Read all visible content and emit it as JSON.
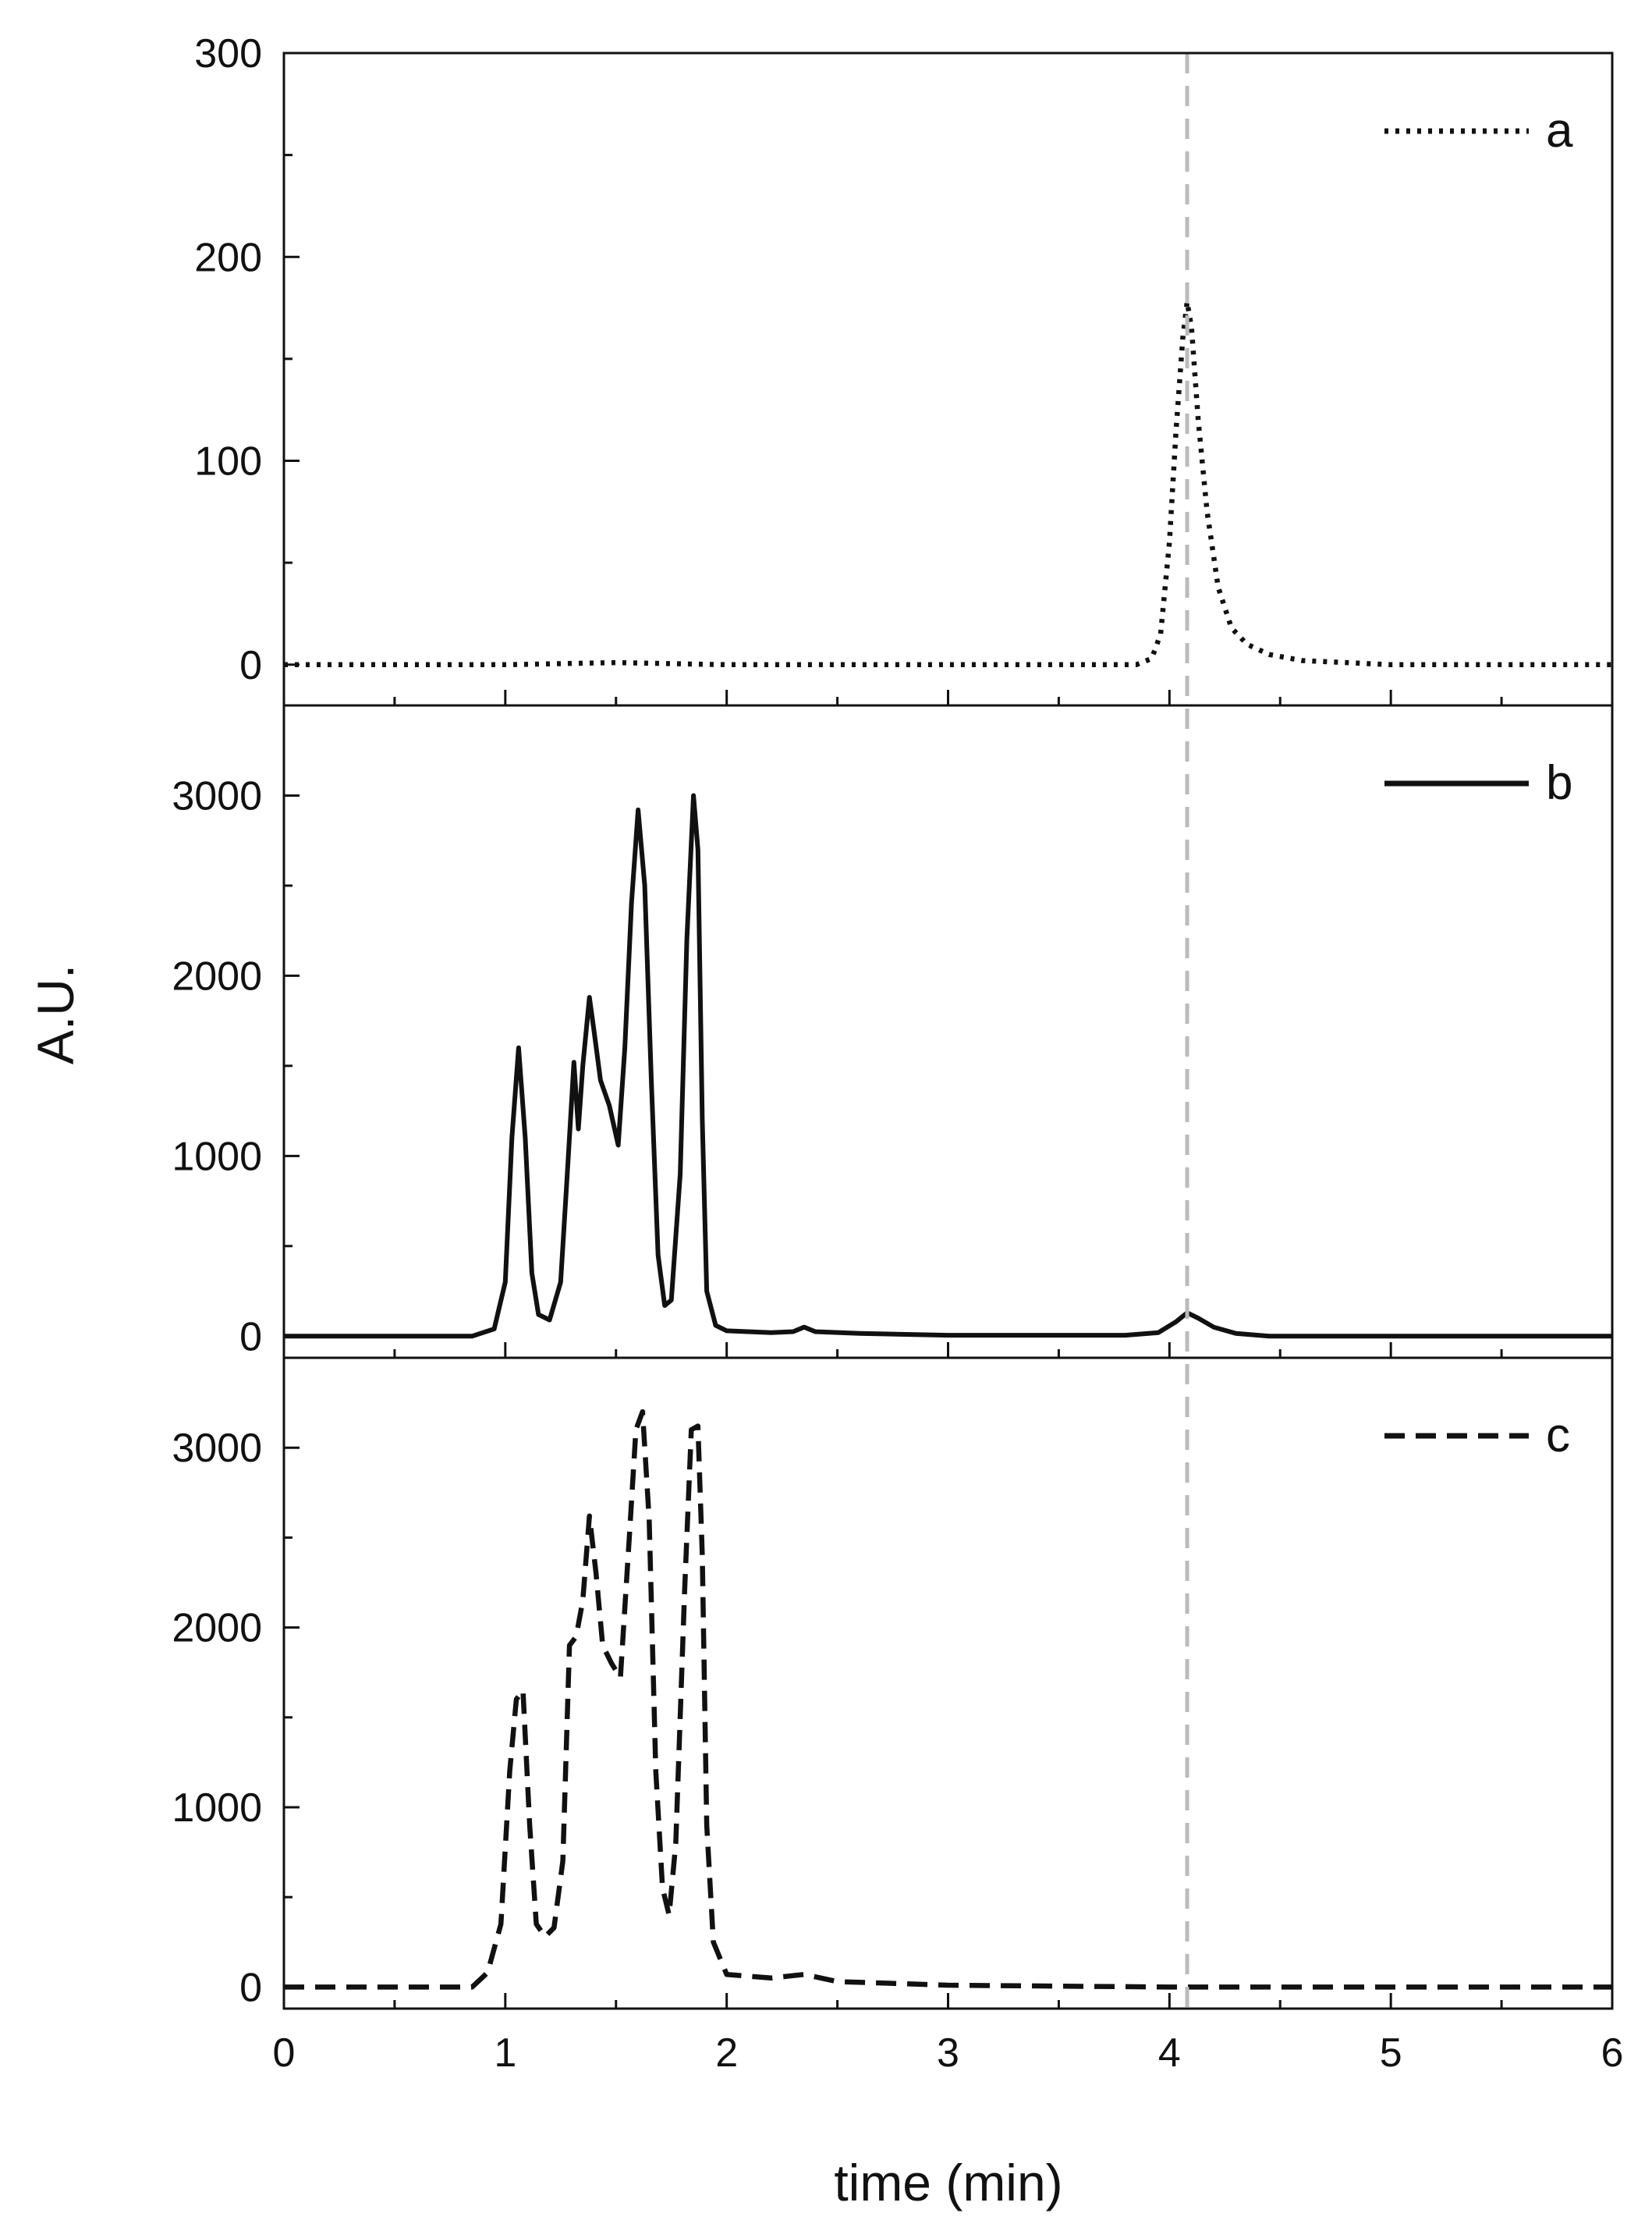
{
  "figure": {
    "xlabel": "time (min)",
    "ylabel": "A.U."
  },
  "colors": {
    "axis": "#111111",
    "trace": "#111111",
    "reference_line": "#bbbbbb"
  },
  "chart_data": [
    {
      "type": "line",
      "panel": "top",
      "xlim": [
        0,
        6
      ],
      "ylim": [
        -20,
        300
      ],
      "xticks": [
        0,
        1,
        2,
        3,
        4,
        5,
        6
      ],
      "yticks": [
        0,
        100,
        200,
        300
      ],
      "ytick_labels": [
        "0",
        "100",
        "200",
        "300"
      ],
      "legend_position": "top-right",
      "reference_line_x": 4.08,
      "series": [
        {
          "name": "a",
          "style": "dotted",
          "x": [
            0,
            1.0,
            1.5,
            2.0,
            3.0,
            3.5,
            3.85,
            3.92,
            3.96,
            4.0,
            4.03,
            4.06,
            4.08,
            4.1,
            4.13,
            4.17,
            4.22,
            4.28,
            4.35,
            4.45,
            4.6,
            4.8,
            5.0,
            5.5,
            6.0
          ],
          "y": [
            0,
            0,
            1,
            0,
            0,
            0,
            0,
            3,
            15,
            60,
            115,
            160,
            178,
            165,
            120,
            75,
            38,
            18,
            10,
            5,
            2,
            1,
            0,
            0,
            0
          ]
        }
      ]
    },
    {
      "type": "line",
      "panel": "middle",
      "xlim": [
        0,
        6
      ],
      "ylim": [
        -120,
        3500
      ],
      "xticks": [
        0,
        1,
        2,
        3,
        4,
        5,
        6
      ],
      "yticks": [
        0,
        1000,
        2000,
        3000
      ],
      "ytick_labels": [
        "0",
        "1000",
        "2000",
        "3000"
      ],
      "legend_position": "top-right",
      "reference_line_x": 4.08,
      "series": [
        {
          "name": "b",
          "style": "solid",
          "x": [
            0,
            0.85,
            0.95,
            1.0,
            1.03,
            1.06,
            1.09,
            1.12,
            1.15,
            1.2,
            1.25,
            1.28,
            1.31,
            1.33,
            1.35,
            1.38,
            1.4,
            1.43,
            1.47,
            1.51,
            1.54,
            1.57,
            1.6,
            1.63,
            1.66,
            1.69,
            1.72,
            1.75,
            1.79,
            1.82,
            1.85,
            1.87,
            1.89,
            1.91,
            1.95,
            2.0,
            2.2,
            2.3,
            2.35,
            2.4,
            2.6,
            3.0,
            3.8,
            3.95,
            4.03,
            4.08,
            4.13,
            4.2,
            4.3,
            4.45,
            5.0,
            6.0
          ],
          "y": [
            0,
            0,
            40,
            300,
            1100,
            1600,
            1100,
            350,
            120,
            90,
            300,
            900,
            1520,
            1150,
            1500,
            1880,
            1700,
            1420,
            1280,
            1060,
            1600,
            2400,
            2920,
            2500,
            1400,
            450,
            170,
            200,
            900,
            2200,
            3000,
            2700,
            1200,
            250,
            60,
            30,
            20,
            25,
            50,
            25,
            15,
            5,
            5,
            20,
            80,
            130,
            100,
            50,
            15,
            0,
            0,
            0
          ]
        }
      ]
    },
    {
      "type": "line",
      "panel": "bottom",
      "xlim": [
        0,
        6
      ],
      "ylim": [
        -120,
        3500
      ],
      "xticks": [
        0,
        1,
        2,
        3,
        4,
        5,
        6
      ],
      "xtick_labels": [
        "0",
        "1",
        "2",
        "3",
        "4",
        "5",
        "6"
      ],
      "yticks": [
        0,
        1000,
        2000,
        3000
      ],
      "ytick_labels": [
        "0",
        "1000",
        "2000",
        "3000"
      ],
      "legend_position": "top-right",
      "reference_line_x": 4.08,
      "series": [
        {
          "name": "c",
          "style": "dashed",
          "x": [
            0,
            0.85,
            0.92,
            0.98,
            1.02,
            1.05,
            1.08,
            1.11,
            1.14,
            1.18,
            1.22,
            1.26,
            1.29,
            1.32,
            1.35,
            1.38,
            1.41,
            1.44,
            1.48,
            1.52,
            1.56,
            1.59,
            1.62,
            1.65,
            1.68,
            1.71,
            1.74,
            1.77,
            1.81,
            1.84,
            1.87,
            1.89,
            1.91,
            1.94,
            2.0,
            2.2,
            2.35,
            2.5,
            3.0,
            4.0,
            5.0,
            6.0
          ],
          "y": [
            0,
            0,
            80,
            350,
            1200,
            1600,
            1650,
            900,
            350,
            280,
            330,
            700,
            1900,
            1950,
            2150,
            2620,
            2300,
            1900,
            1800,
            1720,
            2500,
            3100,
            3200,
            2600,
            1200,
            550,
            400,
            800,
            2200,
            3100,
            3120,
            2400,
            900,
            250,
            70,
            50,
            70,
            30,
            10,
            0,
            0,
            0
          ]
        }
      ]
    }
  ]
}
